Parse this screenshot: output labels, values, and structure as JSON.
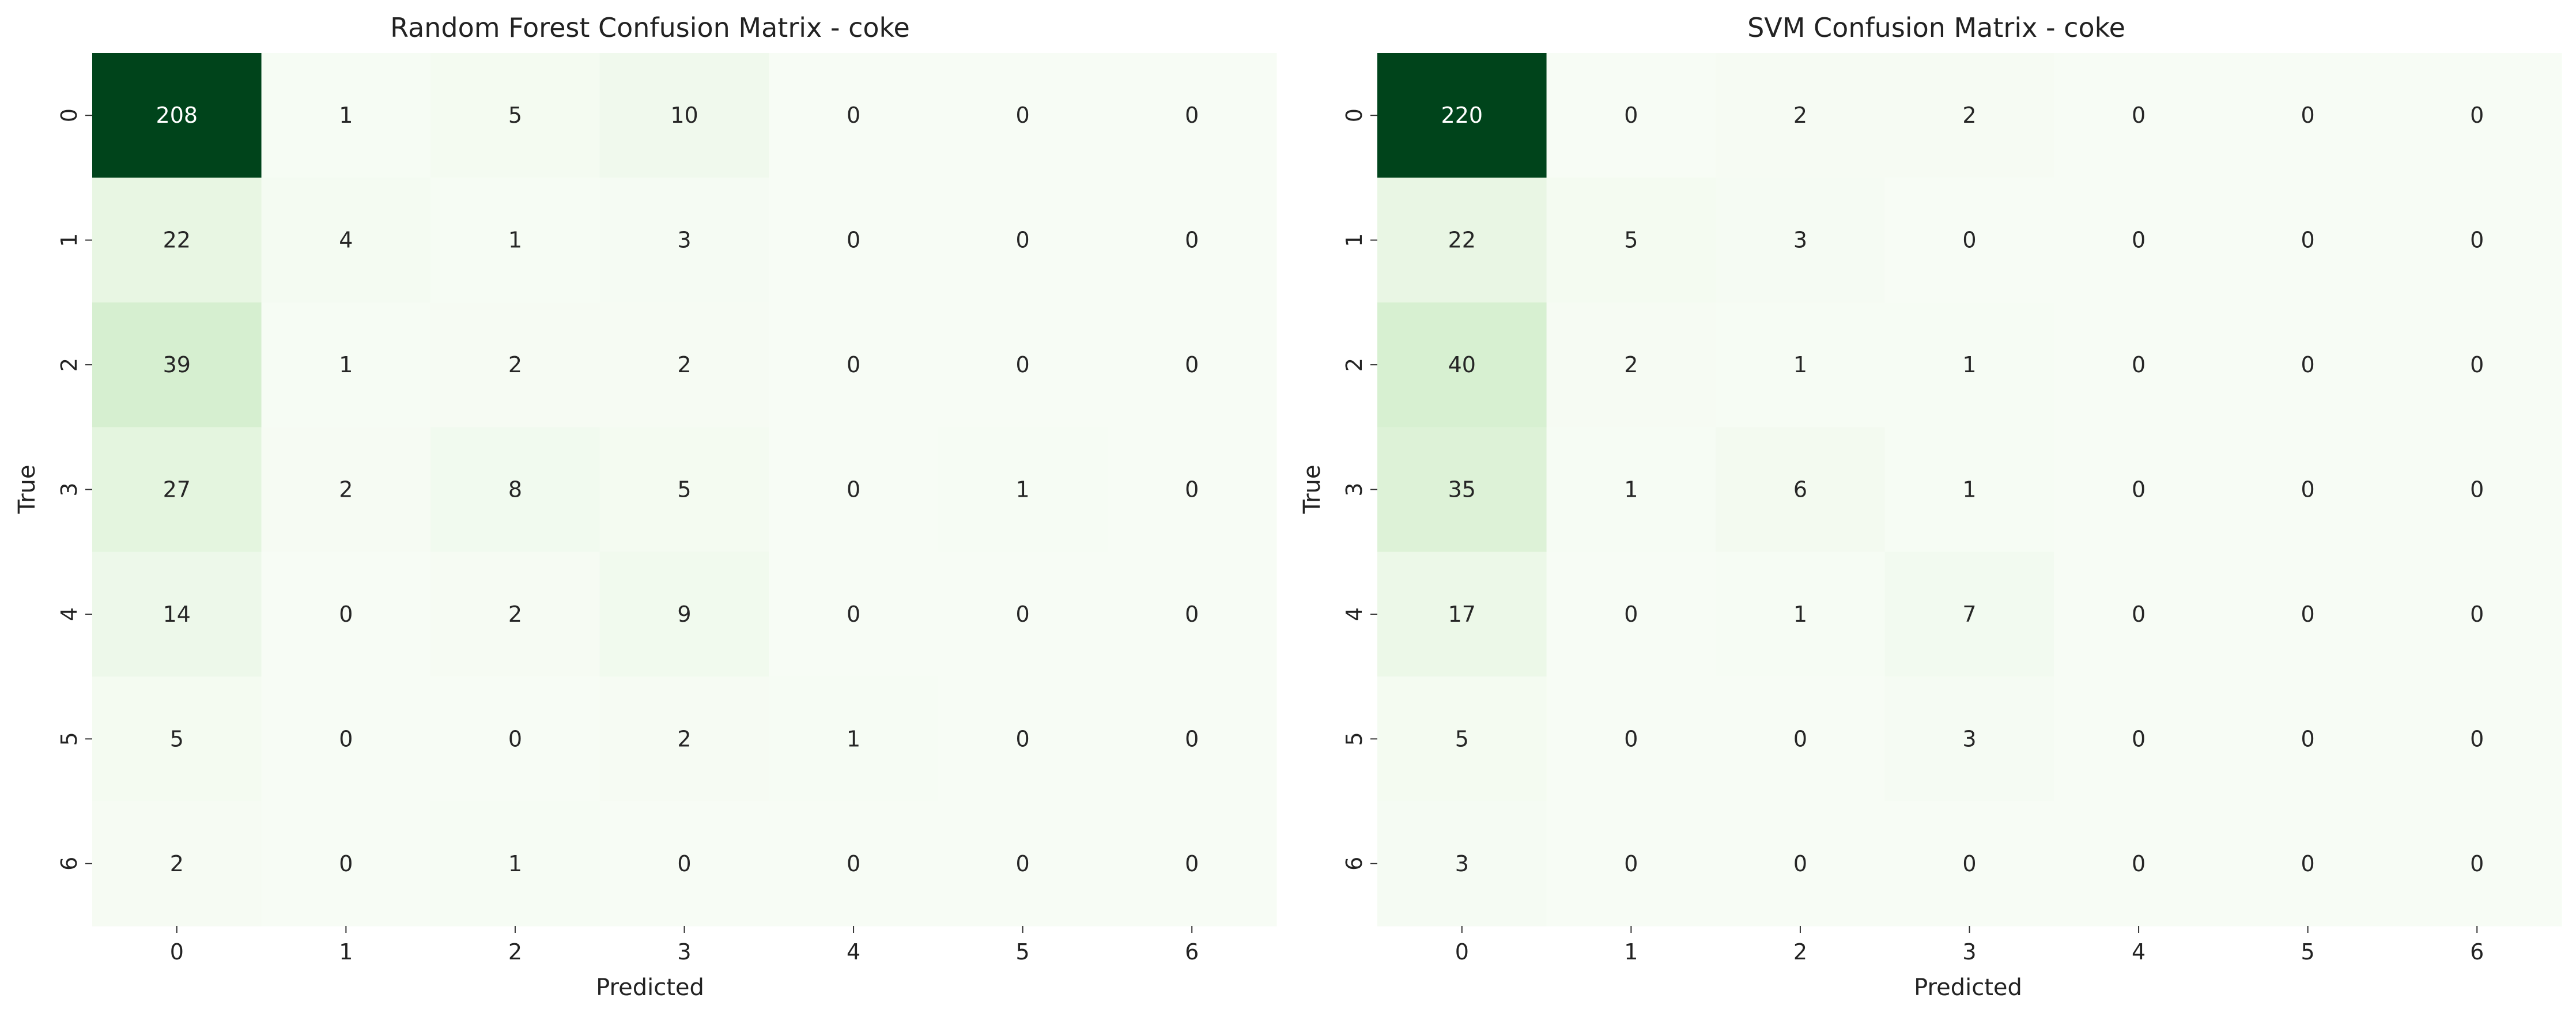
{
  "chart_data": [
    {
      "type": "heatmap",
      "title": "Random Forest Confusion Matrix - coke",
      "xlabel": "Predicted",
      "ylabel": "True",
      "x_categories": [
        "0",
        "1",
        "2",
        "3",
        "4",
        "5",
        "6"
      ],
      "y_categories": [
        "0",
        "1",
        "2",
        "3",
        "4",
        "5",
        "6"
      ],
      "colormap": "Greens",
      "values": [
        [
          208,
          1,
          5,
          10,
          0,
          0,
          0
        ],
        [
          22,
          4,
          1,
          3,
          0,
          0,
          0
        ],
        [
          39,
          1,
          2,
          2,
          0,
          0,
          0
        ],
        [
          27,
          2,
          8,
          5,
          0,
          1,
          0
        ],
        [
          14,
          0,
          2,
          9,
          0,
          0,
          0
        ],
        [
          5,
          0,
          0,
          2,
          1,
          0,
          0
        ],
        [
          2,
          0,
          1,
          0,
          0,
          0,
          0
        ]
      ]
    },
    {
      "type": "heatmap",
      "title": "SVM Confusion Matrix - coke",
      "xlabel": "Predicted",
      "ylabel": "True",
      "x_categories": [
        "0",
        "1",
        "2",
        "3",
        "4",
        "5",
        "6"
      ],
      "y_categories": [
        "0",
        "1",
        "2",
        "3",
        "4",
        "5",
        "6"
      ],
      "colormap": "Greens",
      "values": [
        [
          220,
          0,
          2,
          2,
          0,
          0,
          0
        ],
        [
          22,
          5,
          3,
          0,
          0,
          0,
          0
        ],
        [
          40,
          2,
          1,
          1,
          0,
          0,
          0
        ],
        [
          35,
          1,
          6,
          1,
          0,
          0,
          0
        ],
        [
          17,
          0,
          1,
          7,
          0,
          0,
          0
        ],
        [
          5,
          0,
          0,
          3,
          0,
          0,
          0
        ],
        [
          3,
          0,
          0,
          0,
          0,
          0,
          0
        ]
      ]
    }
  ]
}
